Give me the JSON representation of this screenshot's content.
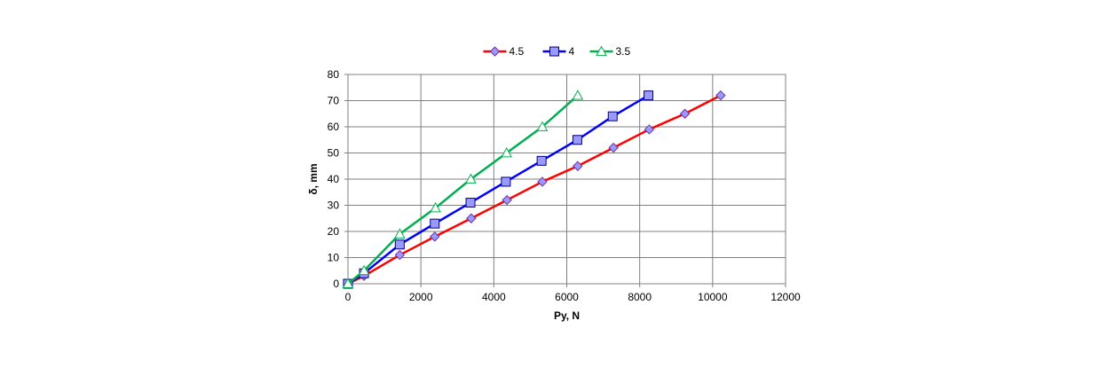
{
  "chart_data": {
    "type": "line",
    "title": "",
    "xlabel": "Py, N",
    "ylabel": "δ, mm",
    "xlim": [
      0,
      12000
    ],
    "ylim": [
      0,
      80
    ],
    "xticks": [
      0,
      2000,
      4000,
      6000,
      8000,
      10000,
      12000
    ],
    "yticks": [
      0,
      10,
      20,
      30,
      40,
      50,
      60,
      70,
      80
    ],
    "grid": true,
    "legend_position": "top",
    "series": [
      {
        "name": "4.5",
        "color": "#ff0000",
        "marker": "diamond",
        "marker_color": "#9999ff",
        "x": [
          0,
          440,
          1420,
          2380,
          3380,
          4360,
          5330,
          6300,
          7280,
          8260,
          9240,
          10220
        ],
        "y": [
          0,
          3,
          11,
          18,
          25,
          32,
          39,
          45,
          52,
          59,
          65,
          72
        ]
      },
      {
        "name": "4",
        "color": "#0000ff",
        "marker": "square",
        "marker_color": "#9999ff",
        "x": [
          0,
          440,
          1420,
          2380,
          3360,
          4330,
          5310,
          6290,
          7260,
          8240
        ],
        "y": [
          0,
          4,
          15,
          23,
          31,
          39,
          47,
          55,
          64,
          72
        ]
      },
      {
        "name": "3.5",
        "color": "#00b050",
        "marker": "triangle",
        "marker_color": "#ffffff",
        "x": [
          0,
          440,
          1420,
          2400,
          3370,
          4350,
          5330,
          6300
        ],
        "y": [
          0,
          5,
          19,
          29,
          40,
          50,
          60,
          72
        ]
      }
    ]
  }
}
